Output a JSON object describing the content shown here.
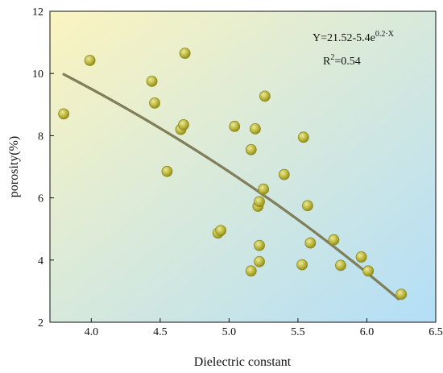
{
  "chart_data": {
    "type": "scatter",
    "xlabel": "Dielectric constant",
    "ylabel": "porosity(%)",
    "xlim": [
      3.7,
      6.5
    ],
    "ylim": [
      2,
      12
    ],
    "x_ticks": [
      "4.0",
      "4.5",
      "5.0",
      "5.5",
      "6.0",
      "6.5"
    ],
    "x_tick_values": [
      4.0,
      4.5,
      5.0,
      5.5,
      6.0,
      6.5
    ],
    "y_ticks": [
      "2",
      "4",
      "6",
      "8",
      "10",
      "12"
    ],
    "y_tick_values": [
      2,
      4,
      6,
      8,
      10,
      12
    ],
    "grid": false,
    "points": [
      {
        "x": 3.8,
        "y": 8.7
      },
      {
        "x": 3.99,
        "y": 10.42
      },
      {
        "x": 4.44,
        "y": 9.75
      },
      {
        "x": 4.46,
        "y": 9.05
      },
      {
        "x": 4.55,
        "y": 6.85
      },
      {
        "x": 4.65,
        "y": 8.2
      },
      {
        "x": 4.67,
        "y": 8.35
      },
      {
        "x": 4.68,
        "y": 10.65
      },
      {
        "x": 4.92,
        "y": 4.87
      },
      {
        "x": 4.94,
        "y": 4.95
      },
      {
        "x": 5.04,
        "y": 8.3
      },
      {
        "x": 5.16,
        "y": 7.55
      },
      {
        "x": 5.16,
        "y": 3.65
      },
      {
        "x": 5.19,
        "y": 8.22
      },
      {
        "x": 5.21,
        "y": 5.73
      },
      {
        "x": 5.22,
        "y": 5.88
      },
      {
        "x": 5.22,
        "y": 4.47
      },
      {
        "x": 5.22,
        "y": 3.95
      },
      {
        "x": 5.25,
        "y": 6.28
      },
      {
        "x": 5.26,
        "y": 9.27
      },
      {
        "x": 5.4,
        "y": 6.75
      },
      {
        "x": 5.53,
        "y": 3.85
      },
      {
        "x": 5.54,
        "y": 7.95
      },
      {
        "x": 5.57,
        "y": 5.75
      },
      {
        "x": 5.59,
        "y": 4.55
      },
      {
        "x": 5.76,
        "y": 4.65
      },
      {
        "x": 5.81,
        "y": 3.83
      },
      {
        "x": 5.96,
        "y": 4.1
      },
      {
        "x": 6.01,
        "y": 3.65
      },
      {
        "x": 6.25,
        "y": 2.9
      }
    ],
    "fit": {
      "a": 21.52,
      "b": 5.4,
      "c": 0.2,
      "x_range": [
        3.8,
        6.23
      ]
    },
    "equation": {
      "prefix": "Y=21.52-5.4e",
      "exponent": "0.2·X",
      "r2_base": "R",
      "r2_sup": "2",
      "r2_value": "=0.54"
    },
    "colors": {
      "gradient_top_left": "#fbf4bf",
      "gradient_bottom_right": "#b3def8",
      "marker_fill": "#b9b63a",
      "marker_stroke": "#8e8a1e",
      "fit_line": "#7c7a55"
    }
  }
}
